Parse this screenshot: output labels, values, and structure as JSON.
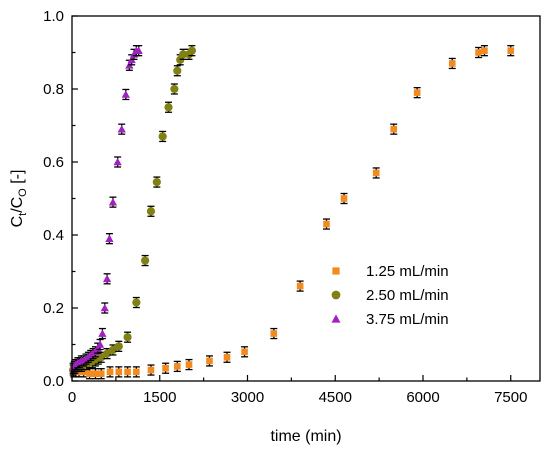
{
  "chart_data": {
    "type": "scatter",
    "xlabel": "time (min)",
    "ylabel": {
      "main": "C",
      "sub1": "t",
      "mid": "/C",
      "sub2": "O",
      "suffix": " [-]"
    },
    "xlim": [
      0,
      8000
    ],
    "ylim": [
      0,
      1.0
    ],
    "x_ticks": [
      0,
      1500,
      3000,
      4500,
      6000,
      7500
    ],
    "y_ticks": [
      0.0,
      0.2,
      0.4,
      0.6,
      0.8,
      1.0
    ],
    "y_tick_labels": [
      "0.0",
      "0.2",
      "0.4",
      "0.6",
      "0.8",
      "1.0"
    ],
    "grid": false,
    "legend_position": "center-right",
    "series": [
      {
        "name": "1.25 mL/min",
        "marker": "square",
        "color": "#f28a1e",
        "x": [
          30,
          60,
          120,
          200,
          300,
          400,
          500,
          650,
          800,
          950,
          1100,
          1350,
          1600,
          1800,
          2000,
          2350,
          2650,
          2950,
          3450,
          3900,
          4350,
          4650,
          5200,
          5500,
          5900,
          6500,
          6950,
          7050,
          7500
        ],
        "y": [
          0.025,
          0.025,
          0.025,
          0.025,
          0.02,
          0.02,
          0.02,
          0.025,
          0.025,
          0.025,
          0.025,
          0.03,
          0.035,
          0.04,
          0.045,
          0.055,
          0.065,
          0.08,
          0.13,
          0.26,
          0.43,
          0.5,
          0.57,
          0.69,
          0.79,
          0.87,
          0.9,
          0.905,
          0.905
        ]
      },
      {
        "name": "2.50 mL/min",
        "marker": "circle",
        "color": "#808013",
        "x": [
          20,
          50,
          80,
          120,
          160,
          200,
          250,
          300,
          350,
          400,
          450,
          500,
          600,
          700,
          800,
          950,
          1100,
          1250,
          1350,
          1450,
          1550,
          1650,
          1750,
          1800,
          1850,
          1900,
          2000,
          2050
        ],
        "y": [
          0.03,
          0.035,
          0.04,
          0.04,
          0.04,
          0.045,
          0.045,
          0.05,
          0.05,
          0.055,
          0.06,
          0.065,
          0.075,
          0.085,
          0.095,
          0.12,
          0.215,
          0.33,
          0.465,
          0.545,
          0.67,
          0.75,
          0.8,
          0.85,
          0.88,
          0.895,
          0.895,
          0.905
        ]
      },
      {
        "name": "3.75 mL/min",
        "marker": "triangle",
        "color": "#a020c0",
        "x": [
          20,
          40,
          60,
          80,
          100,
          130,
          160,
          200,
          240,
          280,
          320,
          360,
          400,
          440,
          480,
          520,
          560,
          600,
          640,
          700,
          780,
          850,
          920,
          980,
          1020,
          1060,
          1100,
          1140
        ],
        "y": [
          0.035,
          0.04,
          0.045,
          0.045,
          0.05,
          0.05,
          0.055,
          0.055,
          0.06,
          0.065,
          0.07,
          0.075,
          0.08,
          0.09,
          0.1,
          0.13,
          0.2,
          0.28,
          0.39,
          0.49,
          0.6,
          0.69,
          0.785,
          0.865,
          0.88,
          0.895,
          0.905,
          0.905
        ]
      }
    ]
  }
}
